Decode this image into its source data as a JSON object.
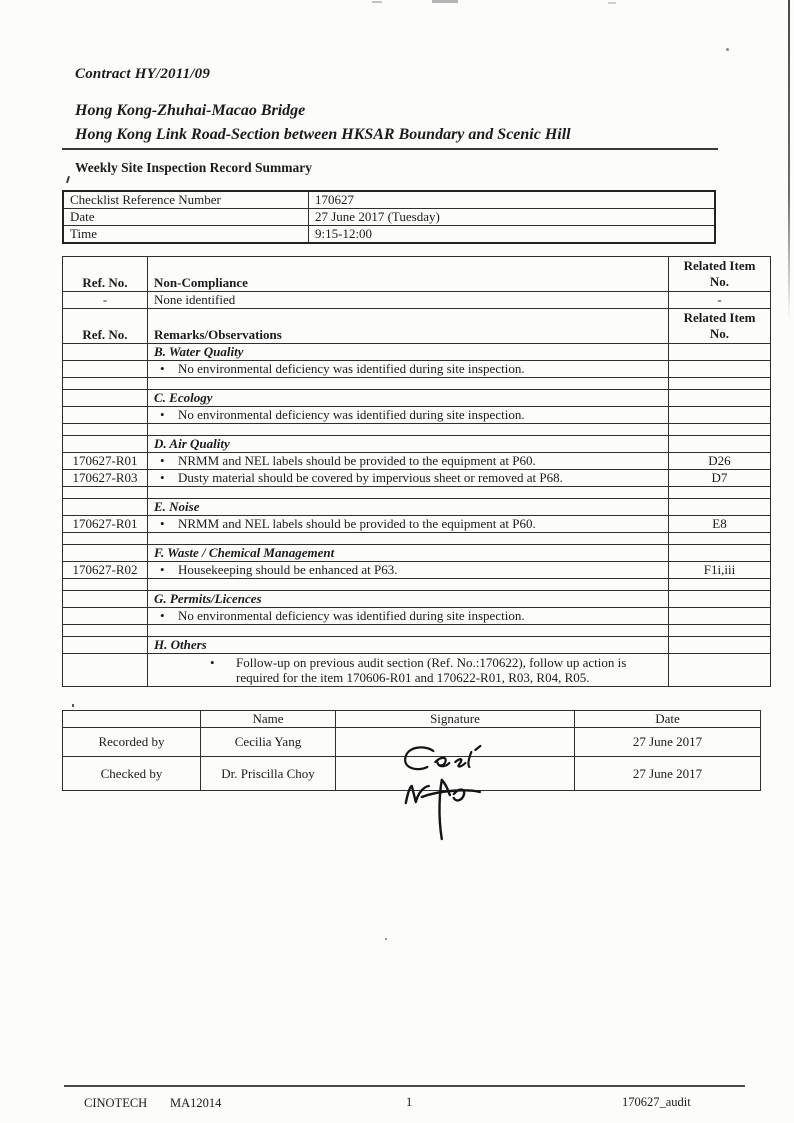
{
  "header": {
    "contract": "Contract HY/2011/09",
    "project": "Hong Kong-Zhuhai-Macao Bridge",
    "section": "Hong Kong Link Road-Section between HKSAR Boundary and Scenic Hill",
    "doc_title": "Weekly Site Inspection Record Summary"
  },
  "info_table": {
    "rows": [
      {
        "label": "Checklist Reference Number",
        "value": "170627"
      },
      {
        "label": "Date",
        "value": "27 June 2017 (Tuesday)"
      },
      {
        "label": "Time",
        "value": "9:15-12:00"
      }
    ]
  },
  "main_table": {
    "rows": [
      {
        "kind": "header",
        "ref": "Ref. No.",
        "text": "Non-Compliance",
        "related": "Related Item No."
      },
      {
        "kind": "data",
        "ref": "-",
        "text": "None identified",
        "related": "-"
      },
      {
        "kind": "header",
        "ref": "Ref. No.",
        "text": "Remarks/Observations",
        "related": "Related Item No."
      },
      {
        "kind": "section",
        "text": "B. Water Quality"
      },
      {
        "kind": "bullet",
        "text": "No environmental deficiency was identified during site inspection."
      },
      {
        "kind": "empty"
      },
      {
        "kind": "section",
        "text": "C. Ecology"
      },
      {
        "kind": "bullet",
        "text": "No environmental deficiency was identified during site inspection."
      },
      {
        "kind": "empty"
      },
      {
        "kind": "section",
        "text": "D. Air Quality"
      },
      {
        "kind": "bullet",
        "ref": "170627-R01",
        "text": "NRMM and NEL labels should be provided to the equipment at P60.",
        "related": "D26"
      },
      {
        "kind": "bullet",
        "ref": "170627-R03",
        "text": "Dusty material should be covered by impervious sheet or removed at P68.",
        "related": "D7"
      },
      {
        "kind": "empty"
      },
      {
        "kind": "section",
        "text": "E. Noise"
      },
      {
        "kind": "bullet",
        "ref": "170627-R01",
        "text": "NRMM and NEL labels should be provided to the equipment at P60.",
        "related": "E8"
      },
      {
        "kind": "empty"
      },
      {
        "kind": "section",
        "text": "F. Waste / Chemical Management"
      },
      {
        "kind": "bullet",
        "ref": "170627-R02",
        "text": "Housekeeping should be enhanced at P63.",
        "related": "F1i,iii"
      },
      {
        "kind": "empty"
      },
      {
        "kind": "section",
        "text": "G. Permits/Licences"
      },
      {
        "kind": "bullet",
        "text": "No environmental deficiency was identified during site inspection."
      },
      {
        "kind": "empty"
      },
      {
        "kind": "section",
        "text": "H. Others"
      },
      {
        "kind": "bullet2",
        "text": "Follow-up on previous audit section (Ref. No.:170622), follow up action is required for the item 170606-R01 and 170622-R01, R03, R04, R05."
      }
    ]
  },
  "sig_table": {
    "headers": {
      "name": "Name",
      "signature": "Signature",
      "date": "Date"
    },
    "rows": [
      {
        "role": "Recorded by",
        "name": "Cecilia Yang",
        "date": "27 June 2017"
      },
      {
        "role": "Checked by",
        "name": "Dr. Priscilla Choy",
        "date": "27 June 2017"
      }
    ]
  },
  "footer": {
    "org": "CINOTECH",
    "code": "MA12014",
    "page": "1",
    "doc_ref": "170627_audit"
  }
}
